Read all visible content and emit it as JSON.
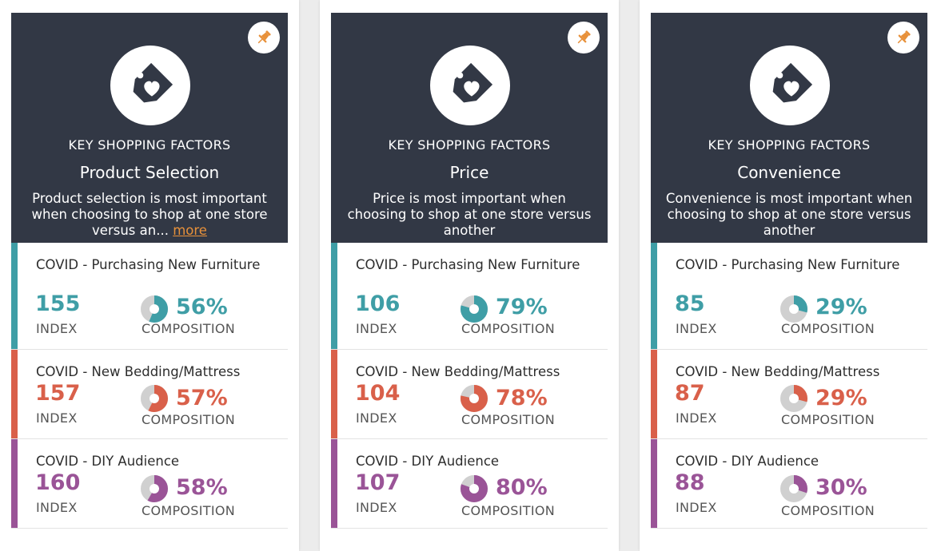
{
  "colors": {
    "hero_bg": "#323845",
    "accent_orange": "#e8913a",
    "furniture_teal": "#3f9ea6",
    "bedding_coral": "#d9604a",
    "diy_purple": "#9a5497",
    "donut_track": "#d0d0d0"
  },
  "icons": {
    "pin": "pushpin-icon",
    "tag": "price-tag-heart-icon"
  },
  "cards": [
    {
      "eyebrow": "KEY SHOPPING FACTORS",
      "factor": "Product Selection",
      "description": "Product selection is most important when choosing to shop at one store versus an...",
      "more_label": "more",
      "rows": [
        {
          "audience": "COVID - Purchasing New Furniture",
          "index": "155",
          "index_label": "INDEX",
          "composition": "56%",
          "composition_value": 0.56,
          "composition_label": "COMPOSITION",
          "color": "#3f9ea6"
        },
        {
          "audience": "COVID - New Bedding/Mattress",
          "index": "157",
          "index_label": "INDEX",
          "composition": "57%",
          "composition_value": 0.57,
          "composition_label": "COMPOSITION",
          "color": "#d9604a"
        },
        {
          "audience": "COVID - DIY Audience",
          "index": "160",
          "index_label": "INDEX",
          "composition": "58%",
          "composition_value": 0.58,
          "composition_label": "COMPOSITION",
          "color": "#9a5497"
        }
      ]
    },
    {
      "eyebrow": "KEY SHOPPING FACTORS",
      "factor": "Price",
      "description": "Price is most important when choosing to shop at one store versus another",
      "more_label": "",
      "rows": [
        {
          "audience": "COVID - Purchasing New Furniture",
          "index": "106",
          "index_label": "INDEX",
          "composition": "79%",
          "composition_value": 0.79,
          "composition_label": "COMPOSITION",
          "color": "#3f9ea6"
        },
        {
          "audience": "COVID - New Bedding/Mattress",
          "index": "104",
          "index_label": "INDEX",
          "composition": "78%",
          "composition_value": 0.78,
          "composition_label": "COMPOSITION",
          "color": "#d9604a"
        },
        {
          "audience": "COVID - DIY Audience",
          "index": "107",
          "index_label": "INDEX",
          "composition": "80%",
          "composition_value": 0.8,
          "composition_label": "COMPOSITION",
          "color": "#9a5497"
        }
      ]
    },
    {
      "eyebrow": "KEY SHOPPING FACTORS",
      "factor": "Convenience",
      "description": "Convenience is most important when choosing to shop at one store versus another",
      "more_label": "",
      "rows": [
        {
          "audience": "COVID - Purchasing New Furniture",
          "index": "85",
          "index_label": "INDEX",
          "composition": "29%",
          "composition_value": 0.29,
          "composition_label": "COMPOSITION",
          "color": "#3f9ea6"
        },
        {
          "audience": "COVID - New Bedding/Mattress",
          "index": "87",
          "index_label": "INDEX",
          "composition": "29%",
          "composition_value": 0.29,
          "composition_label": "COMPOSITION",
          "color": "#d9604a"
        },
        {
          "audience": "COVID - DIY Audience",
          "index": "88",
          "index_label": "INDEX",
          "composition": "30%",
          "composition_value": 0.3,
          "composition_label": "COMPOSITION",
          "color": "#9a5497"
        }
      ]
    }
  ]
}
